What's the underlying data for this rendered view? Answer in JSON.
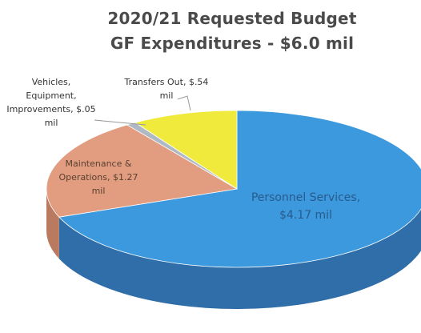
{
  "chart_data": {
    "type": "pie",
    "title": "2020/21 Requested Budget",
    "subtitle": "GF Expenditures - $6.0 mil",
    "unit": "$ mil",
    "slices": [
      {
        "label": "Personnel Services, $4.17 mil",
        "value": 4.17,
        "color": "#3c99dd",
        "side": "#2f6ea8"
      },
      {
        "label": "Maintenance & Operations, $1.27 mil",
        "value": 1.27,
        "color": "#e29d80",
        "side": "#b97a5f"
      },
      {
        "label": "Vehicles, Equipment, Improvements, $.05 mil",
        "value": 0.05,
        "color": "#aeb9c4",
        "side": "#8a96a2"
      },
      {
        "label": "Transfers Out, $.54 mil",
        "value": 0.54,
        "color": "#f0ea3c",
        "side": "#c9c22a"
      }
    ]
  },
  "labels": {
    "personnel": "Personnel Services,\n$4.17 mil",
    "maintenance": "Maintenance &\nOperations, $1.27\nmil",
    "vehicles": "Vehicles,\nEquipment,\nImprovements, $.05\nmil",
    "transfers": "Transfers Out, $.54\nmil"
  }
}
